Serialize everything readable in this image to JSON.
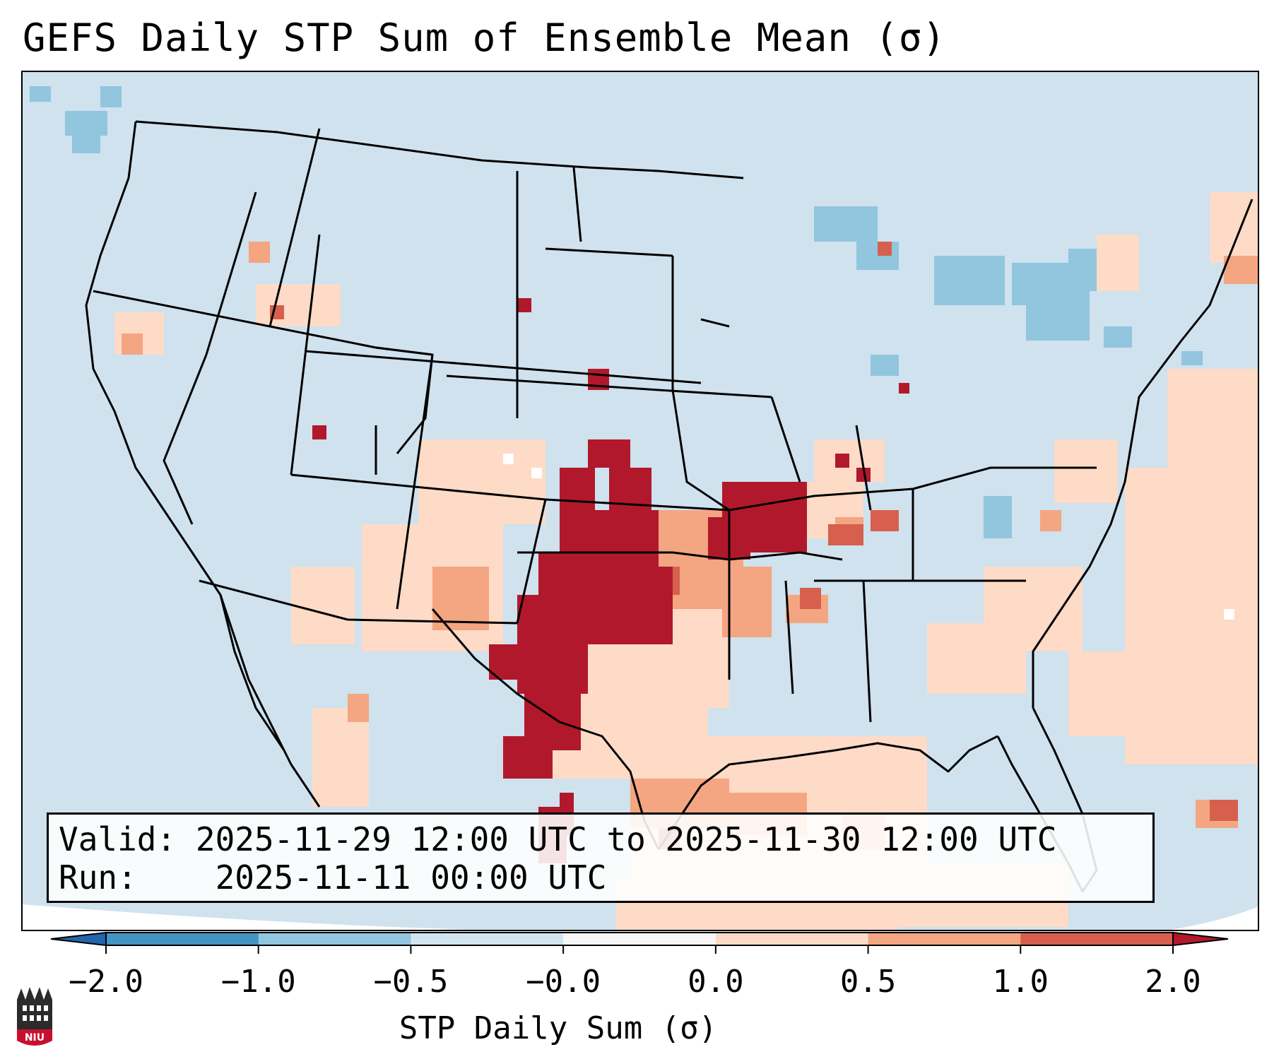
{
  "title": "GEFS Daily STP Sum of Ensemble Mean (σ)",
  "info": {
    "valid_label": "Valid:",
    "valid_value": "2025-11-29 12:00 UTC to 2025-11-30 12:00 UTC",
    "run_label": "Run:",
    "run_value": "2025-11-11 00:00 UTC"
  },
  "colorbar": {
    "label": "STP Daily Sum (σ)",
    "ticks": [
      "−2.0",
      "−1.0",
      "−0.5",
      "−0.0",
      "0.0",
      "0.5",
      "1.0",
      "2.0"
    ],
    "colors": [
      "#2166ac",
      "#4393c3",
      "#92c5de",
      "#d1e5f0",
      "#f7f7f7",
      "#fddbc7",
      "#f4a582",
      "#d6604d",
      "#b2182b"
    ],
    "extend": "both"
  },
  "legend_colors": {
    "background": "#cfe2ee",
    "strong_positive": "#b2182b",
    "positive": "#d6604d",
    "mild_positive": "#f4a582",
    "weak_positive": "#fddbc7",
    "weak_negative": "#92c5de"
  },
  "logo": {
    "text": "NIU",
    "icon": "university-building-icon"
  }
}
